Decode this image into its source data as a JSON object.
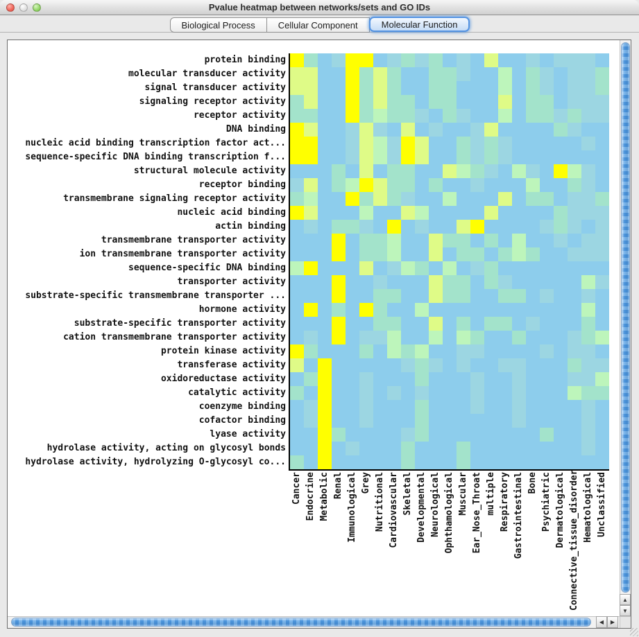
{
  "window": {
    "title": "Pvalue heatmap between networks/sets and GO IDs"
  },
  "icons": {
    "up_arrow": "▲",
    "down_arrow": "▼",
    "left_arrow": "◀",
    "right_arrow": "▶"
  },
  "tabs": [
    {
      "label": "Biological Process",
      "selected": false
    },
    {
      "label": "Cellular Component",
      "selected": false
    },
    {
      "label": "Molecular Function",
      "selected": true
    }
  ],
  "chart_data": {
    "type": "heatmap",
    "title": "Pvalue heatmap between networks/sets and GO IDs",
    "rows": [
      "protein binding",
      "molecular transducer activity",
      "signal transducer activity",
      "signaling receptor activity",
      "receptor activity",
      "DNA binding",
      "nucleic acid binding transcription factor act...",
      "sequence-specific DNA binding transcription f...",
      "structural molecule activity",
      "receptor binding",
      "transmembrane signaling receptor activity",
      "nucleic acid binding",
      "actin binding",
      "transmembrane transporter activity",
      "ion transmembrane transporter activity",
      "sequence-specific DNA binding",
      "transporter activity",
      "substrate-specific transmembrane transporter ...",
      "hormone activity",
      "substrate-specific transporter activity",
      "cation transmembrane transporter activity",
      "protein kinase activity",
      "transferase activity",
      "oxidoreductase activity",
      "catalytic activity",
      "coenzyme binding",
      "cofactor binding",
      "lyase activity",
      "hydrolase activity, acting on glycosyl bonds",
      "hydrolase activity, hydrolyzing O-glycosyl co..."
    ],
    "columns": [
      "Cancer",
      "Endocrine",
      "Metabolic",
      "Renal",
      "Immunological",
      "Grey",
      "Nutritional",
      "Cardiovascular",
      "Skeletal",
      "Developmental",
      "Neurological",
      "Ophthamological",
      "Muscular",
      "Ear_Nose_Throat",
      "multiple",
      "Respiratory",
      "Gastrointestinal",
      "Bone",
      "Psychiatric",
      "Dermatological",
      "Connective_tissue_disorder",
      "Hematological",
      "Unclassified"
    ],
    "palette_hex": {
      "0": "#8DCDEC",
      "1": "#9CD6E2",
      "2": "#A3E3CB",
      "3": "#BDF5BB",
      "4": "#DFFB87",
      "5": "#FFFF00"
    },
    "palette_note": "0=light blue base, 1=blue-aqua tint, 2=aqua green, 3=pale green, 4=yellow-green, 5=bright yellow (strongest signal)",
    "grid_levels": [
      "52015501212010400101110",
      "44005242002210030210112",
      "44005242002200030210112",
      "24005242202200040220111",
      "22005232210210030221211",
      "54001410401001400002100",
      "55001431540021210000010",
      "55001431540021210000000",
      "00020402200432103105310",
      "14023542202001000300210",
      "23005242100300040220112",
      "54000300430000400002111",
      "01022105010045000012101",
      "00050223004220203001011",
      "00050223004022023200111",
      "35000401320301200000000",
      "00050010004220210000031",
      "00050022004220022010010",
      "05020520030000000000030",
      "00050022004020220100020",
      "01050113003032002000123",
      "52000203230011000010110",
      "40500000121010011000211",
      "02500100020001001000113",
      "20500101010001001000322",
      "01500100020001001000010",
      "01500100020000001000010",
      "00520000120000000020010",
      "00501000200020000000010",
      "20500000200020000000000"
    ],
    "axis_color": "#000000",
    "legend": "none",
    "grid_lines": false
  }
}
